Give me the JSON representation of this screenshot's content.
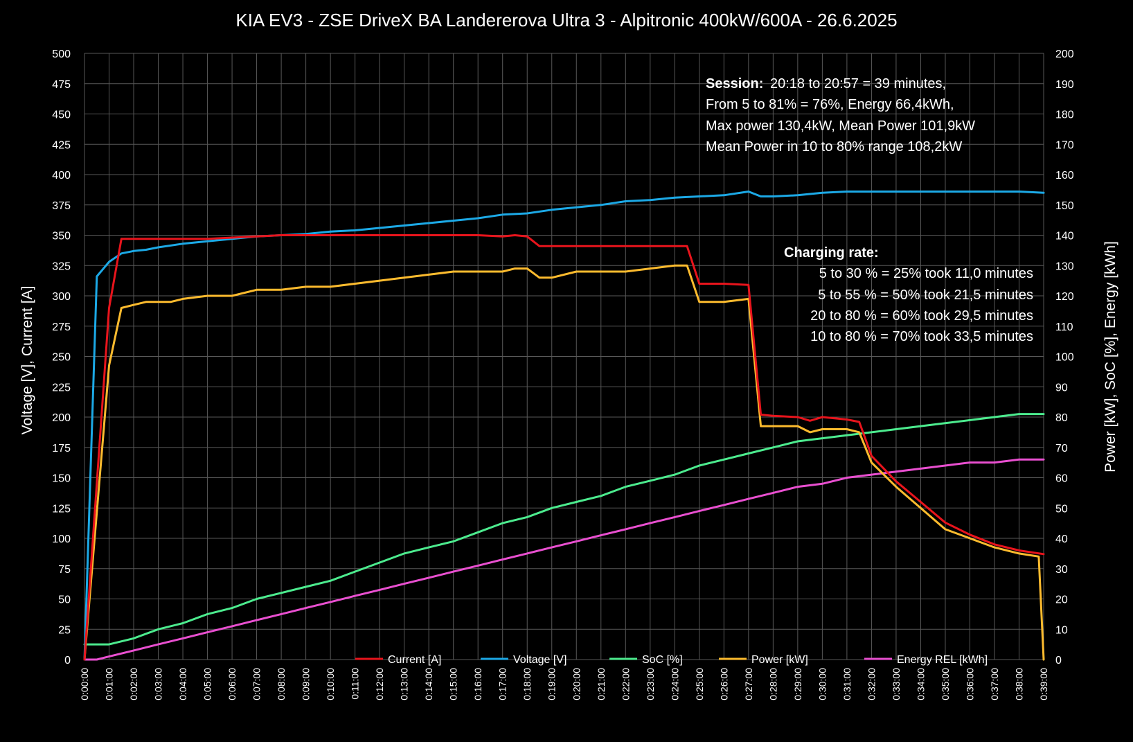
{
  "chart_data": {
    "type": "line",
    "title": "KIA EV3 - ZSE DriveX BA Landererova Ultra 3 - Alpitronic 400kW/600A - 26.6.2025",
    "ylabel_left": "Voltage [V], Current [A]",
    "ylabel_right": "Power [kW], SoC [%], Energy [kWh]",
    "ylim_left": [
      0,
      500
    ],
    "ylim_right": [
      0,
      200
    ],
    "yticks_left": [
      "0",
      "25",
      "50",
      "75",
      "100",
      "125",
      "150",
      "175",
      "200",
      "225",
      "250",
      "275",
      "300",
      "325",
      "350",
      "375",
      "400",
      "425",
      "450",
      "475",
      "500"
    ],
    "yticks_right": [
      "0",
      "10",
      "20",
      "30",
      "40",
      "50",
      "60",
      "70",
      "80",
      "90",
      "100",
      "110",
      "120",
      "130",
      "140",
      "150",
      "160",
      "170",
      "180",
      "190",
      "200"
    ],
    "xlim_minutes": [
      0,
      39
    ],
    "xticks": [
      "0:00:00",
      "0:01:00",
      "0:02:00",
      "0:03:00",
      "0:04:00",
      "0:05:00",
      "0:06:00",
      "0:07:00",
      "0:08:00",
      "0:09:00",
      "0:10:00",
      "0:11:00",
      "0:12:00",
      "0:13:00",
      "0:14:00",
      "0:15:00",
      "0:16:00",
      "0:17:00",
      "0:18:00",
      "0:19:00",
      "0:20:00",
      "0:21:00",
      "0:22:00",
      "0:23:00",
      "0:24:00",
      "0:25:00",
      "0:26:00",
      "0:27:00",
      "0:28:00",
      "0:29:00",
      "0:30:00",
      "0:31:00",
      "0:32:00",
      "0:33:00",
      "0:34:00",
      "0:35:00",
      "0:36:00",
      "0:37:00",
      "0:38:00",
      "0:39:00"
    ],
    "grid": true,
    "legend_placement": "bottom",
    "series": [
      {
        "name": "Current [A]",
        "axis": "left",
        "color": "#e8141c",
        "x": [
          0,
          1,
          1.5,
          2,
          2.5,
          3,
          3.5,
          4,
          5,
          6,
          7,
          8,
          9,
          10,
          11,
          12,
          13,
          14,
          15,
          16,
          17,
          17.5,
          18,
          18.5,
          19,
          20,
          21,
          22,
          23,
          24,
          24.5,
          25,
          26,
          27,
          27.5,
          28,
          29,
          29.5,
          30,
          31,
          31.5,
          32,
          33,
          34,
          35,
          36,
          37,
          38,
          39
        ],
        "y": [
          0,
          290,
          347,
          347,
          347,
          347,
          347,
          347,
          347,
          348,
          349,
          350,
          350,
          350,
          350,
          350,
          350,
          350,
          350,
          350,
          349,
          350,
          349,
          341,
          341,
          341,
          341,
          341,
          341,
          341,
          341,
          310,
          310,
          309,
          202,
          201,
          200,
          197,
          200,
          198,
          196,
          168,
          147,
          130,
          113,
          103,
          95,
          90,
          87
        ]
      },
      {
        "name": "Voltage [V]",
        "axis": "left",
        "color": "#1ca9e6",
        "x": [
          0,
          0.5,
          1,
          1.5,
          2,
          2.5,
          3,
          4,
          5,
          6,
          7,
          8,
          9,
          10,
          11,
          12,
          13,
          14,
          15,
          16,
          17,
          18,
          19,
          20,
          21,
          22,
          23,
          24,
          25,
          26,
          27,
          27.5,
          28,
          29,
          30,
          31,
          32,
          33,
          34,
          35,
          36,
          37,
          38,
          39
        ],
        "y": [
          0,
          316,
          328,
          335,
          337,
          338,
          340,
          343,
          345,
          347,
          349,
          350,
          351,
          353,
          354,
          356,
          358,
          360,
          362,
          364,
          367,
          368,
          371,
          373,
          375,
          378,
          379,
          381,
          382,
          383,
          386,
          382,
          382,
          383,
          385,
          386,
          386,
          386,
          386,
          386,
          386,
          386,
          386,
          385
        ]
      },
      {
        "name": "SoC [%]",
        "axis": "right",
        "color": "#4ceb8e",
        "x": [
          0,
          0.5,
          1,
          2,
          3,
          4,
          5,
          6,
          7,
          8,
          9,
          10,
          11,
          12,
          13,
          14,
          15,
          16,
          17,
          18,
          19,
          20,
          21,
          22,
          23,
          24,
          25,
          26,
          27,
          28,
          29,
          30,
          31,
          32,
          33,
          34,
          35,
          36,
          37,
          38,
          39
        ],
        "y": [
          5,
          5,
          5,
          7,
          10,
          12,
          15,
          17,
          20,
          22,
          24,
          26,
          29,
          32,
          35,
          37,
          39,
          42,
          45,
          47,
          50,
          52,
          54,
          57,
          59,
          61,
          64,
          66,
          68,
          70,
          72,
          73,
          74,
          75,
          76,
          77,
          78,
          79,
          80,
          81,
          81
        ]
      },
      {
        "name": "Power [kW]",
        "axis": "right",
        "color": "#fdbb2e",
        "x": [
          0,
          1,
          1.5,
          2,
          2.5,
          3,
          3.5,
          4,
          5,
          6,
          7,
          8,
          9,
          10,
          11,
          12,
          13,
          14,
          15,
          16,
          17,
          17.5,
          18,
          18.5,
          19,
          20,
          21,
          22,
          23,
          24,
          24.5,
          25,
          26,
          27,
          27.5,
          28,
          29,
          29.5,
          30,
          31,
          31.5,
          32,
          33,
          34,
          35,
          36,
          37,
          38,
          38.8,
          39
        ],
        "y": [
          0,
          97,
          116,
          117,
          118,
          118,
          118,
          119,
          120,
          120,
          122,
          122,
          123,
          123,
          124,
          125,
          126,
          127,
          128,
          128,
          128,
          129,
          129,
          126,
          126,
          128,
          128,
          128,
          129,
          130,
          130,
          118,
          118,
          119,
          77,
          77,
          77,
          75,
          76,
          76,
          75,
          65,
          57,
          50,
          43,
          40,
          37,
          35,
          34,
          0
        ]
      },
      {
        "name": "Energy REL [kWh]",
        "axis": "right",
        "color": "#e94fd0",
        "x": [
          0,
          0.5,
          1,
          2,
          3,
          4,
          5,
          6,
          7,
          8,
          9,
          10,
          11,
          12,
          13,
          14,
          15,
          16,
          17,
          18,
          19,
          20,
          21,
          22,
          23,
          24,
          25,
          26,
          27,
          28,
          29,
          30,
          31,
          32,
          33,
          34,
          35,
          36,
          37,
          38,
          39
        ],
        "y": [
          0,
          0,
          1,
          3,
          5,
          7,
          9,
          11,
          13,
          15,
          17,
          19,
          21,
          23,
          25,
          27,
          29,
          31,
          33,
          35,
          37,
          39,
          41,
          43,
          45,
          47,
          49,
          51,
          53,
          55,
          57,
          58,
          60,
          61,
          62,
          63,
          64,
          65,
          65,
          66,
          66
        ]
      }
    ],
    "annotations": {
      "session": {
        "label": "Session:",
        "line1": "20:18 to 20:57 = 39 minutes,",
        "line2": "From 5 to 81% = 76%, Energy 66,4kWh,",
        "line3": "Max power 130,4kW, Mean Power 101,9kW",
        "line4": "Mean Power in 10 to 80% range 108,2kW"
      },
      "charging_rate": {
        "label": "Charging rate:",
        "lines": [
          "5 to 30 % = 25% took 11,0 minutes",
          "5 to 55 % = 50% took 21,5 minutes",
          "20 to 80 % = 60% took 29,5 minutes",
          "10 to 80 % = 70% took 33,5 minutes"
        ]
      }
    }
  }
}
